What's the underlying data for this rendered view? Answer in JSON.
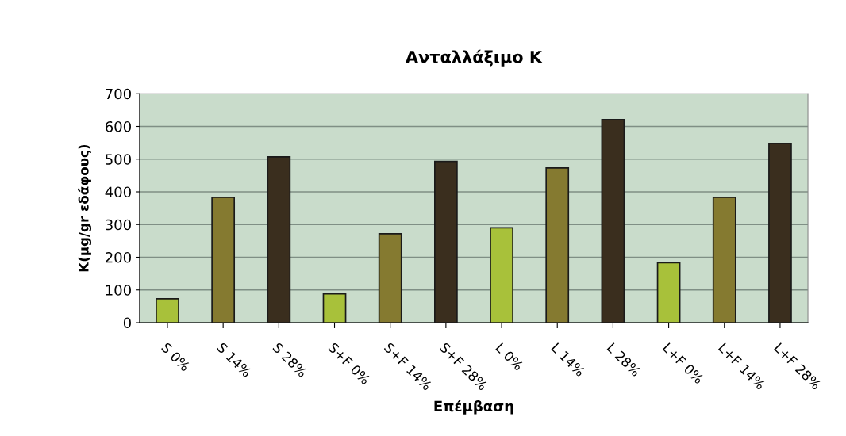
{
  "chart_data": {
    "type": "bar",
    "title": "Ανταλλάξιμο Κ",
    "xlabel": "Επέμβαση",
    "ylabel": "Κ(μg/gr εδάφους)",
    "categories": [
      "S 0%",
      "S 14%",
      "S 28%",
      "S+F 0%",
      "S+F 14%",
      "S+F 28%",
      "L 0%",
      "L 14%",
      "L 28%",
      "L+F 0%",
      "L+F 14%",
      "L+F 28%"
    ],
    "values": [
      73,
      383,
      507,
      88,
      272,
      493,
      290,
      473,
      621,
      183,
      383,
      548
    ],
    "colors": [
      "#a8c13a",
      "#857a30",
      "#3a2e1e",
      "#a8c13a",
      "#857a30",
      "#3a2e1e",
      "#a8c13a",
      "#857a30",
      "#3a2e1e",
      "#a8c13a",
      "#857a30",
      "#3a2e1e"
    ],
    "ylim": [
      0,
      700
    ],
    "yticks": [
      0,
      100,
      200,
      300,
      400,
      500,
      600,
      700
    ],
    "grid": "y",
    "legend": false
  }
}
